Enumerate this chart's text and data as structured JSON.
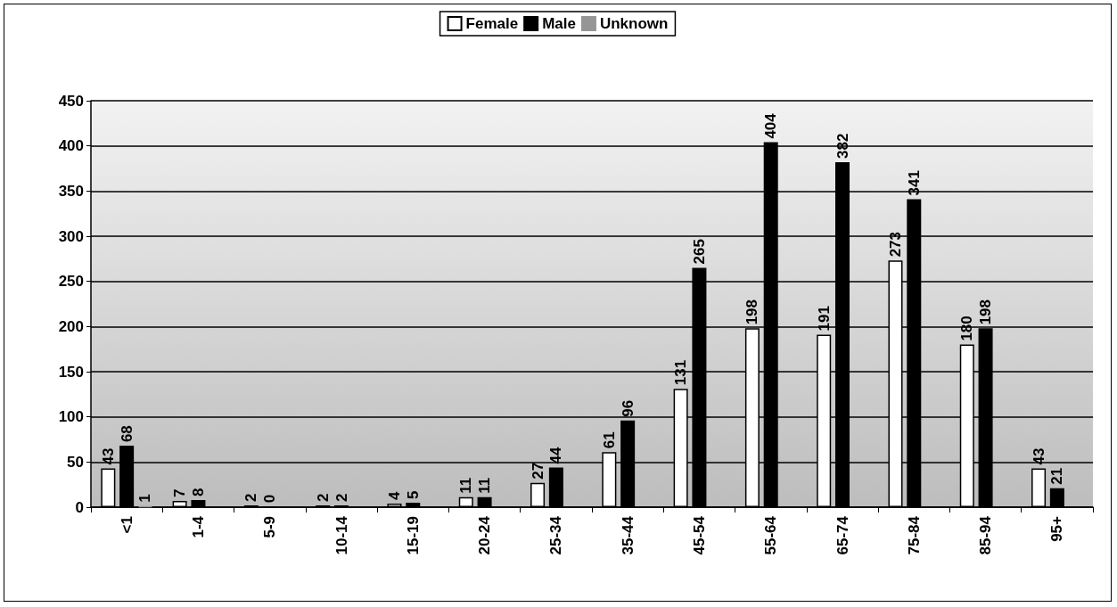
{
  "chart_data": {
    "type": "bar",
    "categories": [
      "<1",
      "1-4",
      "5-9",
      "10-14",
      "15-19",
      "20-24",
      "25-34",
      "35-44",
      "45-54",
      "55-64",
      "65-74",
      "75-84",
      "85-94",
      "95+"
    ],
    "series": [
      {
        "name": "Female",
        "color": "#ffffff",
        "values": [
          43,
          7,
          2,
          2,
          4,
          11,
          27,
          61,
          131,
          198,
          191,
          273,
          180,
          43
        ]
      },
      {
        "name": "Male",
        "color": "#000000",
        "values": [
          68,
          8,
          0,
          2,
          5,
          11,
          44,
          96,
          265,
          404,
          382,
          341,
          198,
          21
        ]
      },
      {
        "name": "Unknown",
        "color": "#969696",
        "values": [
          1,
          null,
          null,
          null,
          null,
          null,
          null,
          null,
          null,
          null,
          null,
          null,
          null,
          null
        ]
      }
    ],
    "ylim": [
      0,
      450
    ],
    "yticks": [
      0,
      50,
      100,
      150,
      200,
      250,
      300,
      350,
      400,
      450
    ],
    "grid": "y",
    "legend": "top",
    "data_labels": true
  }
}
